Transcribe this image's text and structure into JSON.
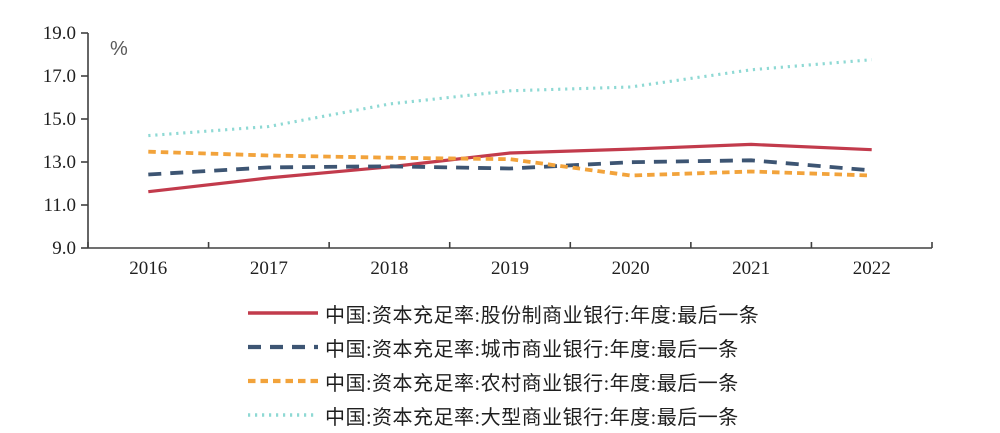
{
  "chart_data": {
    "type": "line",
    "title": "",
    "unit_label": "%",
    "xlabel": "",
    "ylabel": "",
    "categories": [
      "2016",
      "2017",
      "2018",
      "2019",
      "2020",
      "2021",
      "2022"
    ],
    "y_ticks": [
      "9.0",
      "11.0",
      "13.0",
      "15.0",
      "17.0",
      "19.0"
    ],
    "ylim": [
      9.0,
      19.0
    ],
    "grid": false,
    "legend_position": "bottom",
    "axis_color": "#404040",
    "series": [
      {
        "name": "中国:资本充足率:股份制商业银行:年度:最后一条",
        "color": "#c23b4c",
        "line_style": "solid",
        "values": [
          11.62,
          12.26,
          12.77,
          13.42,
          13.6,
          13.82,
          13.57
        ]
      },
      {
        "name": "中国:资本充足率:城市商业银行:年度:最后一条",
        "color": "#3d5573",
        "line_style": "dashed",
        "values": [
          12.42,
          12.75,
          12.8,
          12.7,
          12.99,
          13.08,
          12.61
        ]
      },
      {
        "name": "中国:资本充足率:农村商业银行:年度:最后一条",
        "color": "#f2a33b",
        "line_style": "short-dash",
        "values": [
          13.48,
          13.3,
          13.2,
          13.13,
          12.37,
          12.56,
          12.37
        ]
      },
      {
        "name": "中国:资本充足率:大型商业银行:年度:最后一条",
        "color": "#8ed9d4",
        "line_style": "dotted",
        "values": [
          14.23,
          14.65,
          15.7,
          16.31,
          16.49,
          17.29,
          17.76
        ]
      }
    ]
  }
}
